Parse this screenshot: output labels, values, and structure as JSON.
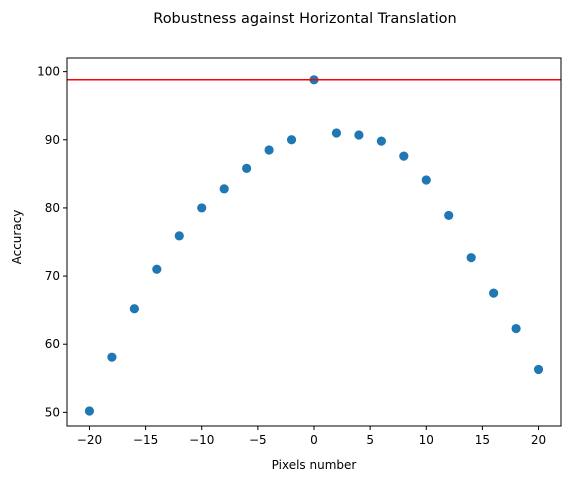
{
  "chart_data": {
    "type": "scatter",
    "title": "Robustness against Horizontal Translation",
    "xlabel": "Pixels number",
    "ylabel": "Accuracy",
    "xlim": [
      -22,
      22
    ],
    "ylim": [
      48,
      102
    ],
    "xticks": [
      -20,
      -15,
      -10,
      -5,
      0,
      5,
      10,
      15,
      20
    ],
    "yticks": [
      50,
      60,
      70,
      80,
      90,
      100
    ],
    "grid": false,
    "series": [
      {
        "color": "#1f77b4",
        "points": [
          {
            "x": -20,
            "y": 50.2
          },
          {
            "x": -18,
            "y": 58.1
          },
          {
            "x": -16,
            "y": 65.2
          },
          {
            "x": -14,
            "y": 71.0
          },
          {
            "x": -12,
            "y": 75.9
          },
          {
            "x": -10,
            "y": 80.0
          },
          {
            "x": -8,
            "y": 82.8
          },
          {
            "x": -6,
            "y": 85.8
          },
          {
            "x": -4,
            "y": 88.5
          },
          {
            "x": -2,
            "y": 90.0
          },
          {
            "x": 0,
            "y": 98.8
          },
          {
            "x": 2,
            "y": 91.0
          },
          {
            "x": 4,
            "y": 90.7
          },
          {
            "x": 6,
            "y": 89.8
          },
          {
            "x": 8,
            "y": 87.6
          },
          {
            "x": 10,
            "y": 84.1
          },
          {
            "x": 12,
            "y": 78.9
          },
          {
            "x": 14,
            "y": 72.7
          },
          {
            "x": 16,
            "y": 67.5
          },
          {
            "x": 18,
            "y": 62.3
          },
          {
            "x": 20,
            "y": 56.3
          }
        ]
      }
    ],
    "reference_line": {
      "orientation": "horizontal",
      "y": 98.8,
      "color": "#ff0000"
    }
  }
}
